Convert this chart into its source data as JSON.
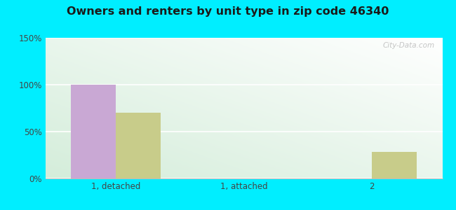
{
  "title": "Owners and renters by unit type in zip code 46340",
  "categories": [
    "1, detached",
    "1, attached",
    "2"
  ],
  "owner_values": [
    100,
    0,
    0
  ],
  "renter_values": [
    70,
    0,
    28
  ],
  "owner_color": "#c9a8d4",
  "renter_color": "#c8cc8a",
  "ylim": [
    0,
    150
  ],
  "yticks": [
    0,
    50,
    100,
    150
  ],
  "ytick_labels": [
    "0%",
    "50%",
    "100%",
    "150%"
  ],
  "bar_width": 0.35,
  "outer_color": "#00eeff",
  "watermark": "City-Data.com",
  "bg_left_color": "#c8e6c9",
  "bg_right_color": "#f5fff5"
}
